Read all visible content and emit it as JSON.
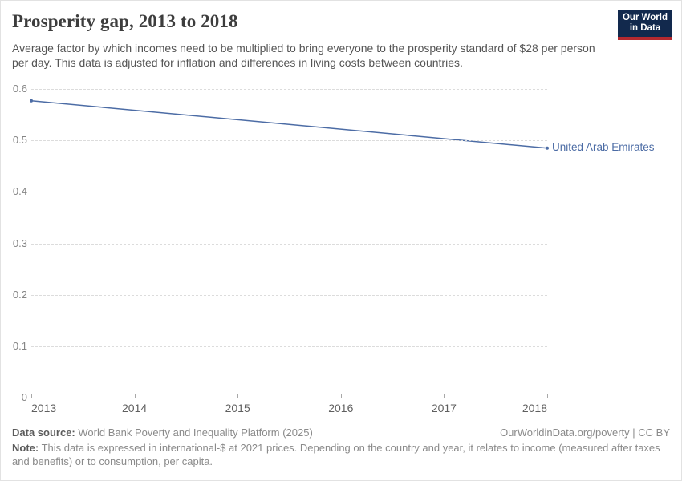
{
  "header": {
    "title": "Prosperity gap, 2013 to 2018",
    "subtitle": "Average factor by which incomes need to be multiplied to bring everyone to the prosperity standard of $28 per person per day. This data is adjusted for inflation and differences in living costs between countries.",
    "logo": {
      "line1": "Our World",
      "line2": "in Data",
      "bg_color": "#12294d",
      "stripe_color": "#b5292f"
    }
  },
  "chart_data": {
    "type": "line",
    "title": "Prosperity gap, 2013 to 2018",
    "xlabel": "",
    "ylabel": "",
    "xlim": [
      2013,
      2018
    ],
    "ylim": [
      0,
      0.6
    ],
    "xticks": [
      2013,
      2014,
      2015,
      2016,
      2017,
      2018
    ],
    "yticks": [
      0,
      0.1,
      0.2,
      0.3,
      0.4,
      0.5,
      0.6
    ],
    "grid": "horizontal-dashed",
    "legend_position": "line-end-label",
    "series": [
      {
        "name": "United Arab Emirates",
        "color": "#4c6ca5",
        "x": [
          2013,
          2018
        ],
        "values": [
          0.577,
          0.485
        ]
      }
    ]
  },
  "footer": {
    "source_label": "Data source:",
    "source_value": "World Bank Poverty and Inequality Platform (2025)",
    "license_text": "OurWorldinData.org/poverty | CC BY",
    "note_label": "Note:",
    "note_value": "This data is expressed in international-$ at 2021 prices. Depending on the country and year, it relates to income (measured after taxes and benefits) or to consumption, per capita."
  },
  "colors": {
    "line": "#4c6ca5",
    "grid": "#dcdcdc",
    "axis": "#a8a8a8",
    "title_text": "#3d3d3d",
    "subtitle_text": "#555555",
    "y_tick_text": "#858585",
    "x_tick_text": "#5f5f5f",
    "footer_text": "#8a8a8a"
  }
}
